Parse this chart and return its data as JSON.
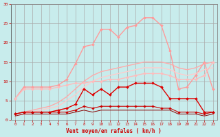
{
  "xlabel": "Vent moyen/en rafales ( km/h )",
  "background_color": "#c8ecec",
  "grid_color": "#aaaaaa",
  "text_color": "#cc0000",
  "xlim": [
    -0.5,
    23.5
  ],
  "ylim": [
    0,
    30
  ],
  "xticks": [
    0,
    1,
    2,
    3,
    4,
    5,
    6,
    7,
    8,
    9,
    10,
    11,
    12,
    13,
    14,
    15,
    16,
    17,
    18,
    19,
    20,
    21,
    22,
    23
  ],
  "yticks": [
    0,
    5,
    10,
    15,
    20,
    25,
    30
  ],
  "series": [
    {
      "x": [
        0,
        1,
        2,
        3,
        4,
        5,
        6,
        7,
        8,
        9,
        10,
        11,
        12,
        13,
        14,
        15,
        16,
        17,
        18,
        19,
        20,
        21,
        22,
        23
      ],
      "y": [
        5.5,
        8.5,
        8.5,
        8.5,
        8.5,
        9.0,
        10.5,
        14.5,
        19.0,
        19.5,
        23.5,
        23.5,
        21.5,
        24.0,
        24.5,
        26.5,
        26.5,
        24.5,
        18.0,
        8.0,
        8.5,
        11.5,
        15.0,
        8.0
      ],
      "color": "#ff9999",
      "lw": 1.0,
      "marker": "D",
      "ms": 2.0
    },
    {
      "x": [
        0,
        1,
        2,
        3,
        4,
        5,
        6,
        7,
        8,
        9,
        10,
        11,
        12,
        13,
        14,
        15,
        16,
        17,
        18,
        19,
        20,
        21,
        22,
        23
      ],
      "y": [
        1.5,
        2.0,
        2.5,
        3.0,
        3.5,
        4.5,
        6.0,
        8.0,
        10.0,
        11.5,
        12.5,
        13.0,
        13.5,
        14.0,
        14.5,
        15.0,
        15.0,
        15.0,
        14.5,
        13.5,
        13.0,
        13.5,
        14.5,
        15.0
      ],
      "color": "#ffaaaa",
      "lw": 1.0,
      "marker": null,
      "ms": 0
    },
    {
      "x": [
        0,
        1,
        2,
        3,
        4,
        5,
        6,
        7,
        8,
        9,
        10,
        11,
        12,
        13,
        14,
        15,
        16,
        17,
        18,
        19,
        20,
        21,
        22,
        23
      ],
      "y": [
        1.0,
        1.5,
        2.0,
        2.5,
        3.0,
        3.5,
        5.0,
        6.5,
        8.5,
        10.0,
        11.0,
        11.5,
        12.0,
        12.5,
        13.0,
        13.5,
        13.5,
        13.5,
        13.0,
        12.0,
        11.5,
        12.0,
        13.0,
        13.5
      ],
      "color": "#ffcccc",
      "lw": 1.0,
      "marker": null,
      "ms": 0
    },
    {
      "x": [
        0,
        1,
        2,
        3,
        4,
        5,
        6,
        7,
        8,
        9,
        10,
        11,
        12,
        13,
        14,
        15,
        16,
        17,
        18,
        19,
        20,
        21,
        22,
        23
      ],
      "y": [
        5.5,
        8.0,
        8.0,
        8.0,
        8.0,
        8.5,
        9.0,
        9.5,
        9.5,
        10.0,
        10.0,
        10.5,
        10.5,
        11.0,
        11.5,
        12.0,
        12.0,
        12.0,
        11.5,
        10.5,
        10.5,
        10.5,
        11.5,
        15.0
      ],
      "color": "#ffbbbb",
      "lw": 1.0,
      "marker": "D",
      "ms": 2.0
    },
    {
      "x": [
        0,
        1,
        2,
        3,
        4,
        5,
        6,
        7,
        8,
        9,
        10,
        11,
        12,
        13,
        14,
        15,
        16,
        17,
        18,
        19,
        20,
        21,
        22,
        23
      ],
      "y": [
        1.5,
        2.0,
        2.0,
        2.0,
        2.0,
        2.5,
        3.0,
        4.0,
        8.0,
        6.5,
        8.0,
        6.5,
        8.5,
        8.5,
        9.5,
        9.5,
        9.5,
        8.5,
        5.5,
        5.5,
        5.5,
        5.5,
        2.0,
        2.0
      ],
      "color": "#dd0000",
      "lw": 1.0,
      "marker": "D",
      "ms": 2.0
    },
    {
      "x": [
        0,
        1,
        2,
        3,
        4,
        5,
        6,
        7,
        8,
        9,
        10,
        11,
        12,
        13,
        14,
        15,
        16,
        17,
        18,
        19,
        20,
        21,
        22,
        23
      ],
      "y": [
        1.5,
        2.0,
        2.0,
        2.0,
        2.0,
        2.0,
        2.0,
        2.5,
        3.5,
        3.0,
        3.5,
        3.5,
        3.5,
        3.5,
        3.5,
        3.5,
        3.5,
        3.0,
        3.0,
        2.0,
        2.0,
        2.0,
        1.5,
        2.0
      ],
      "color": "#cc0000",
      "lw": 0.8,
      "marker": "D",
      "ms": 1.8
    },
    {
      "x": [
        0,
        1,
        2,
        3,
        4,
        5,
        6,
        7,
        8,
        9,
        10,
        11,
        12,
        13,
        14,
        15,
        16,
        17,
        18,
        19,
        20,
        21,
        22,
        23
      ],
      "y": [
        1.0,
        1.5,
        1.5,
        1.5,
        1.5,
        1.5,
        1.5,
        2.0,
        2.5,
        2.0,
        2.5,
        2.5,
        2.5,
        2.5,
        2.5,
        2.5,
        2.5,
        2.5,
        2.5,
        1.5,
        1.5,
        1.5,
        1.0,
        1.5
      ],
      "color": "#880000",
      "lw": 0.7,
      "marker": null,
      "ms": 0
    }
  ]
}
